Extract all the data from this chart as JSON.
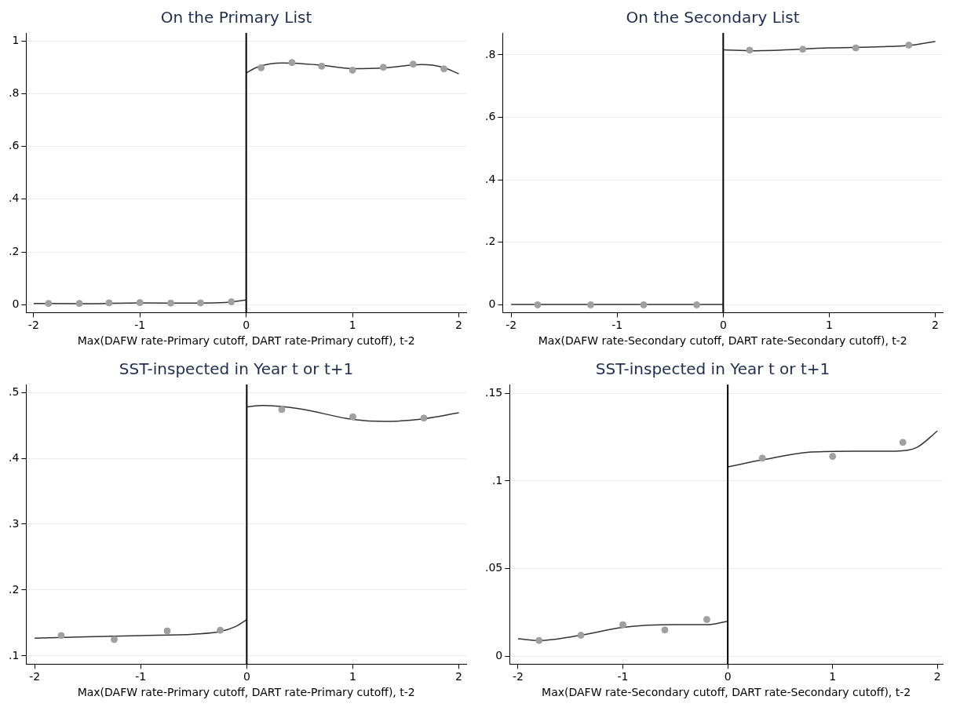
{
  "chart_data": [
    {
      "type": "scatter",
      "title": "On the Primary List",
      "xlabel": "Max(DAFW rate-Primary cutoff, DART rate-Primary cutoff), t-2",
      "xlim": [
        -2.07,
        2.07
      ],
      "xticks": [
        -2,
        -1,
        0,
        1,
        2
      ],
      "ylim": [
        -0.03,
        1.03
      ],
      "yticks": [
        {
          "value": 0,
          "label": "0"
        },
        {
          "value": 0.2,
          "label": ".2"
        },
        {
          "value": 0.4,
          "label": ".4"
        },
        {
          "value": 0.6,
          "label": ".6"
        },
        {
          "value": 0.8,
          "label": ".8"
        },
        {
          "value": 1,
          "label": "1"
        }
      ],
      "grid": "y",
      "legend": false,
      "ref_lines": [
        {
          "axis": "x",
          "value": 0,
          "color": "#000000"
        }
      ],
      "series": [
        {
          "type": "scatter",
          "marker": "circle",
          "color": "#a0a0a0",
          "x": [
            -1.86,
            -1.57,
            -1.29,
            -1,
            -0.71,
            -0.43,
            -0.14,
            0.14,
            0.43,
            0.71,
            1,
            1.29,
            1.57,
            1.86
          ],
          "values": [
            0.005,
            0.005,
            0.007,
            0.008,
            0.006,
            0.007,
            0.011,
            0.898,
            0.918,
            0.904,
            0.889,
            0.9,
            0.912,
            0.894
          ]
        },
        {
          "type": "line",
          "marker": "none",
          "color": "#333333",
          "x": [
            -2,
            -1.5,
            -1,
            -0.5,
            -0.2,
            0
          ],
          "values": [
            0.005,
            0.004,
            0.007,
            0.006,
            0.008,
            0.018
          ]
        },
        {
          "type": "line",
          "marker": "none",
          "color": "#333333",
          "x": [
            0,
            0.1,
            0.35,
            0.7,
            1,
            1.3,
            1.65,
            1.85,
            2
          ],
          "values": [
            0.878,
            0.9,
            0.916,
            0.908,
            0.895,
            0.898,
            0.91,
            0.9,
            0.875
          ]
        }
      ]
    },
    {
      "type": "scatter",
      "title": "On the Secondary List",
      "xlabel": "Max(DAFW rate-Secondary cutoff, DART rate-Secondary cutoff), t-2",
      "xlim": [
        -2.08,
        2.07
      ],
      "xticks": [
        -2,
        -1,
        0,
        1,
        2
      ],
      "ylim": [
        -0.025,
        0.87
      ],
      "yticks": [
        {
          "value": 0,
          "label": "0"
        },
        {
          "value": 0.2,
          "label": ".2"
        },
        {
          "value": 0.4,
          "label": ".4"
        },
        {
          "value": 0.6,
          "label": ".6"
        },
        {
          "value": 0.8,
          "label": ".8"
        }
      ],
      "grid": "y",
      "legend": false,
      "ref_lines": [
        {
          "axis": "x",
          "value": 0,
          "color": "#000000"
        }
      ],
      "series": [
        {
          "type": "scatter",
          "marker": "circle",
          "color": "#a0a0a0",
          "x": [
            -1.75,
            -1.25,
            -0.75,
            -0.25,
            0.25,
            0.75,
            1.25,
            1.75
          ],
          "values": [
            0,
            0,
            0,
            0,
            0.815,
            0.818,
            0.822,
            0.831
          ]
        },
        {
          "type": "line",
          "marker": "none",
          "color": "#333333",
          "x": [
            -2,
            -1,
            0
          ],
          "values": [
            0.001,
            0.001,
            0.001
          ]
        },
        {
          "type": "line",
          "marker": "none",
          "color": "#333333",
          "x": [
            0,
            0.3,
            1,
            1.5,
            1.8,
            2
          ],
          "values": [
            0.816,
            0.813,
            0.822,
            0.826,
            0.832,
            0.843
          ]
        }
      ]
    },
    {
      "type": "scatter",
      "title": "SST-inspected in Year t or t+1",
      "xlabel": "Max(DAFW rate-Primary cutoff, DART rate-Primary cutoff), t-2",
      "xlim": [
        -2.08,
        2.07
      ],
      "xticks": [
        -2,
        -1,
        0,
        1,
        2
      ],
      "ylim": [
        0.0875,
        0.512
      ],
      "yticks": [
        {
          "value": 0.1,
          "label": ".1"
        },
        {
          "value": 0.2,
          "label": ".2"
        },
        {
          "value": 0.3,
          "label": ".3"
        },
        {
          "value": 0.4,
          "label": ".4"
        },
        {
          "value": 0.5,
          "label": ".5"
        }
      ],
      "grid": "y",
      "legend": false,
      "ref_lines": [
        {
          "axis": "x",
          "value": 0,
          "color": "#000000"
        }
      ],
      "series": [
        {
          "type": "scatter",
          "marker": "circle",
          "color": "#a0a0a0",
          "x": [
            -1.75,
            -1.25,
            -0.75,
            -0.25,
            0.33,
            1,
            1.67
          ],
          "values": [
            0.131,
            0.125,
            0.138,
            0.139,
            0.474,
            0.463,
            0.461
          ]
        },
        {
          "type": "line",
          "marker": "none",
          "color": "#333333",
          "x": [
            -2,
            -1,
            -0.5,
            -0.25,
            -0.1,
            0
          ],
          "values": [
            0.127,
            0.131,
            0.133,
            0.137,
            0.145,
            0.155
          ]
        },
        {
          "type": "line",
          "marker": "none",
          "color": "#333333",
          "x": [
            0,
            0.15,
            0.5,
            1,
            1.3,
            1.67,
            2
          ],
          "values": [
            0.478,
            0.48,
            0.475,
            0.459,
            0.456,
            0.46,
            0.469
          ]
        }
      ]
    },
    {
      "type": "scatter",
      "title": "SST-inspected in Year t or t+1",
      "xlabel": "Max(DAFW rate-Secondary cutoff, DART rate-Secondary cutoff), t-2",
      "xlim": [
        -2.08,
        2.05
      ],
      "xticks": [
        -2,
        -1,
        0,
        1,
        2
      ],
      "ylim": [
        -0.0045,
        0.155
      ],
      "yticks": [
        {
          "value": 0,
          "label": "0"
        },
        {
          "value": 0.05,
          "label": ".05"
        },
        {
          "value": 0.1,
          "label": ".1"
        },
        {
          "value": 0.15,
          "label": ".15"
        }
      ],
      "grid": "y",
      "legend": false,
      "ref_lines": [
        {
          "axis": "x",
          "value": 0,
          "color": "#000000"
        }
      ],
      "series": [
        {
          "type": "scatter",
          "marker": "circle",
          "color": "#a0a0a0",
          "x": [
            -1.8,
            -1.4,
            -1,
            -0.6,
            -0.2,
            0.33,
            1,
            1.67
          ],
          "values": [
            0.009,
            0.012,
            0.018,
            0.015,
            0.021,
            0.113,
            0.114,
            0.122
          ]
        },
        {
          "type": "line",
          "marker": "none",
          "color": "#333333",
          "x": [
            -2,
            -1.8,
            -1.4,
            -1,
            -0.5,
            -0.2,
            0
          ],
          "values": [
            0.01,
            0.009,
            0.012,
            0.0165,
            0.018,
            0.018,
            0.02
          ]
        },
        {
          "type": "line",
          "marker": "none",
          "color": "#333333",
          "x": [
            0,
            0.33,
            0.8,
            1.2,
            1.6,
            1.8,
            2
          ],
          "values": [
            0.108,
            0.112,
            0.1165,
            0.117,
            0.117,
            0.119,
            0.1285
          ]
        }
      ]
    }
  ]
}
